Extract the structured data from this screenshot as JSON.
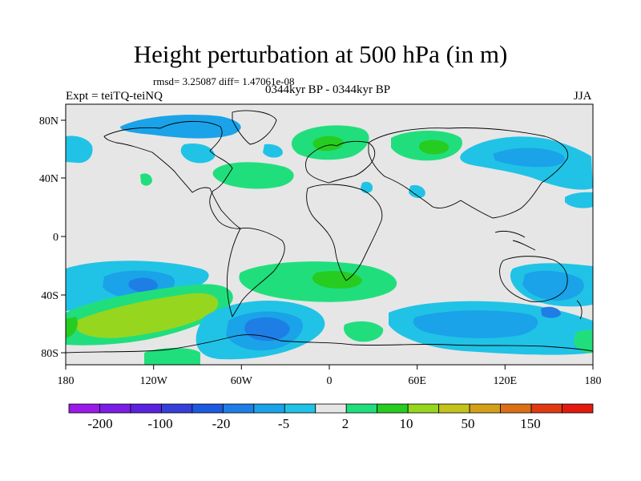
{
  "figure": {
    "title": "Height perturbation at 500 hPa (in m)",
    "stats": "rmsd= 3.25087 diff= 1.47061e-08",
    "period": "0344kyr BP - 0344kyr BP",
    "left_label": "Expt = teiTQ-teiNQ",
    "right_label": "JJA"
  },
  "axes": {
    "lon_ticks": [
      "180",
      "120W",
      "60W",
      "0",
      "60E",
      "120E",
      "180"
    ],
    "lat_ticks": [
      "80N",
      "40N",
      "0",
      "40S",
      "80S"
    ]
  },
  "colors": {
    "land_bg": "#e6e6e6",
    "coast": "#000000",
    "palette": [
      "#9a1ae8",
      "#7c1de6",
      "#5a22de",
      "#3440d8",
      "#1d5ae0",
      "#1e7ee6",
      "#1aa3e8",
      "#20c3e6",
      "#e6e6e6",
      "#21de7d",
      "#27cc20",
      "#96d61e",
      "#c4c21c",
      "#d4a01a",
      "#dc6f16",
      "#e03a12",
      "#e31a0f"
    ]
  },
  "colorbar": {
    "labels": [
      "-200",
      "-100",
      "-20",
      "-5",
      "2",
      "10",
      "50",
      "150"
    ]
  }
}
